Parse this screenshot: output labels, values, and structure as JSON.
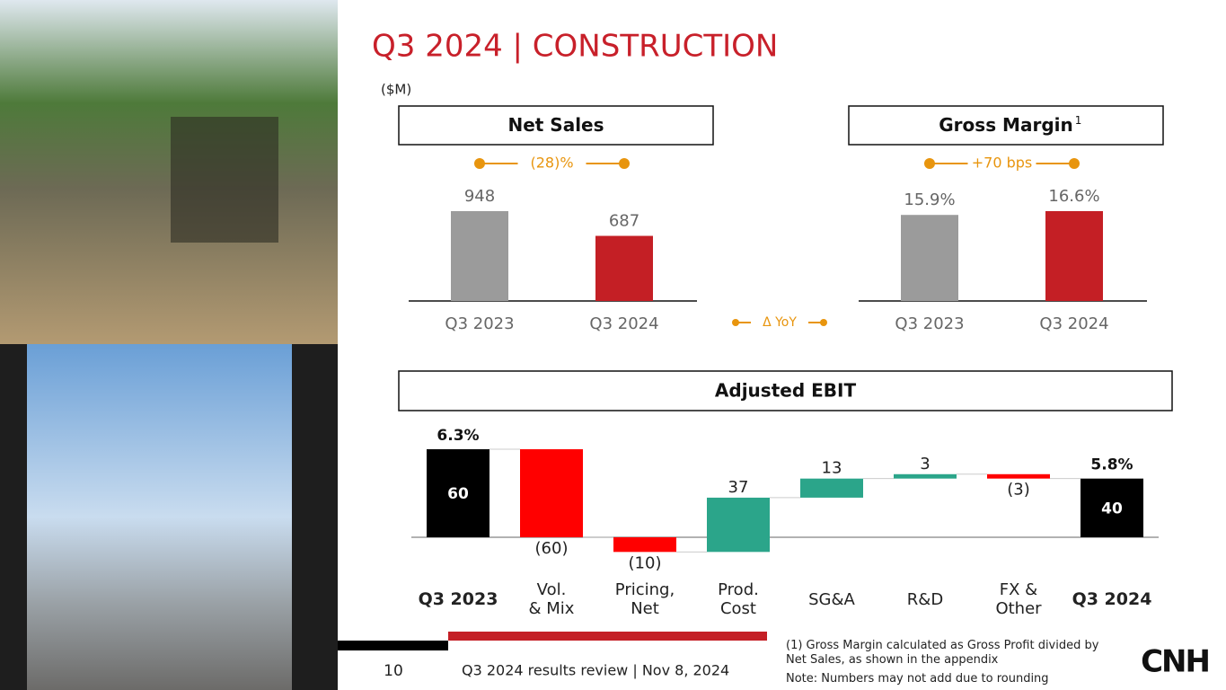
{
  "header": {
    "title": "Q3 2024 | CONSTRUCTION",
    "unit": "($M)"
  },
  "chart_data": [
    {
      "type": "bar",
      "title": "Net Sales",
      "categories": [
        "Q3 2023",
        "Q3 2024"
      ],
      "values": [
        948,
        687
      ],
      "colors": [
        "#9b9b9b",
        "#c41f25"
      ],
      "annotation": "(28)%"
    },
    {
      "type": "bar",
      "title": "Gross Margin",
      "title_note": "1",
      "categories": [
        "Q3 2023",
        "Q3 2024"
      ],
      "values": [
        15.9,
        16.6
      ],
      "value_labels": [
        "15.9%",
        "16.6%"
      ],
      "colors": [
        "#9b9b9b",
        "#c41f25"
      ],
      "annotation": "+70 bps"
    },
    {
      "type": "waterfall",
      "title": "Adjusted EBIT",
      "categories": [
        "Q3 2023",
        "Vol.\n& Mix",
        "Pricing,\nNet",
        "Prod.\nCost",
        "SG&A",
        "R&D",
        "FX &\nOther",
        "Q3 2024"
      ],
      "values": [
        60,
        -60,
        -10,
        37,
        13,
        3,
        -3,
        40
      ],
      "value_labels": [
        "60",
        "(60)",
        "(10)",
        "37",
        "13",
        "3",
        "(3)",
        "40"
      ],
      "measure": [
        "total",
        "relative",
        "relative",
        "relative",
        "relative",
        "relative",
        "relative",
        "total"
      ],
      "margin_labels": [
        "6.3%",
        null,
        null,
        null,
        null,
        null,
        null,
        "5.8%"
      ],
      "colors": {
        "total": "#000000",
        "increase": "#2ba58a",
        "decrease": "#ff0000"
      }
    }
  ],
  "legend": "Δ YoY",
  "footer": {
    "page": "10",
    "text": "Q3 2024 results review | Nov 8, 2024"
  },
  "footnotes": [
    "(1) Gross Margin calculated as Gross Profit divided by Net Sales, as shown in the appendix",
    "Note: Numbers may not add due to rounding"
  ],
  "logo": "CNH"
}
